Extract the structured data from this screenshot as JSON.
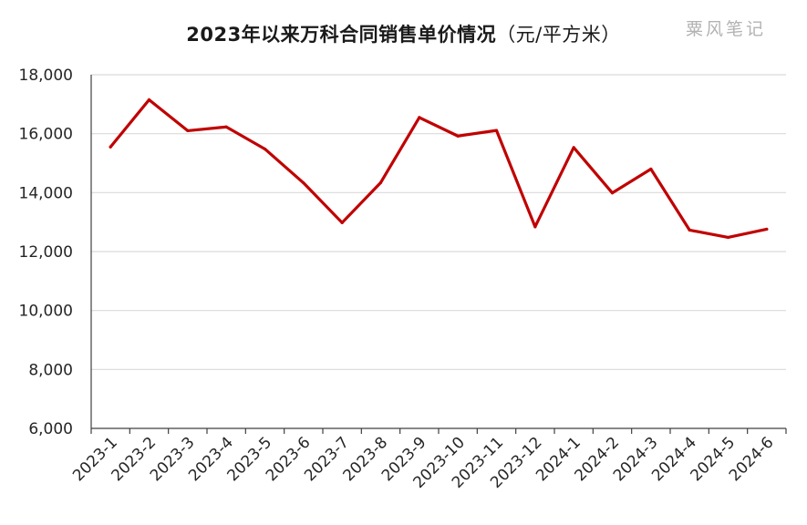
{
  "chart_data": {
    "type": "line",
    "title": "2023年以来万科合同销售单价情况",
    "title_unit": "（元/平方米）",
    "watermark": "粟风笔记",
    "xlabel": "",
    "ylabel": "",
    "ylim": [
      6000,
      18000
    ],
    "y_ticks": [
      6000,
      8000,
      10000,
      12000,
      14000,
      16000,
      18000
    ],
    "y_tick_labels": [
      "6,000",
      "8,000",
      "10,000",
      "12,000",
      "14,000",
      "16,000",
      "18,000"
    ],
    "grid": true,
    "legend": "none",
    "categories": [
      "2023-1",
      "2023-2",
      "2023-3",
      "2023-4",
      "2023-5",
      "2023-6",
      "2023-7",
      "2023-8",
      "2023-9",
      "2023-10",
      "2023-11",
      "2023-12",
      "2024-1",
      "2024-2",
      "2024-3",
      "2024-4",
      "2024-5",
      "2024-6"
    ],
    "series": [
      {
        "values": [
          15550,
          17150,
          16100,
          16230,
          15480,
          14330,
          12980,
          14340,
          16550,
          15920,
          16110,
          12840,
          15530,
          13990,
          14800,
          12730,
          12480,
          12760
        ],
        "color": "#c00000"
      }
    ]
  }
}
